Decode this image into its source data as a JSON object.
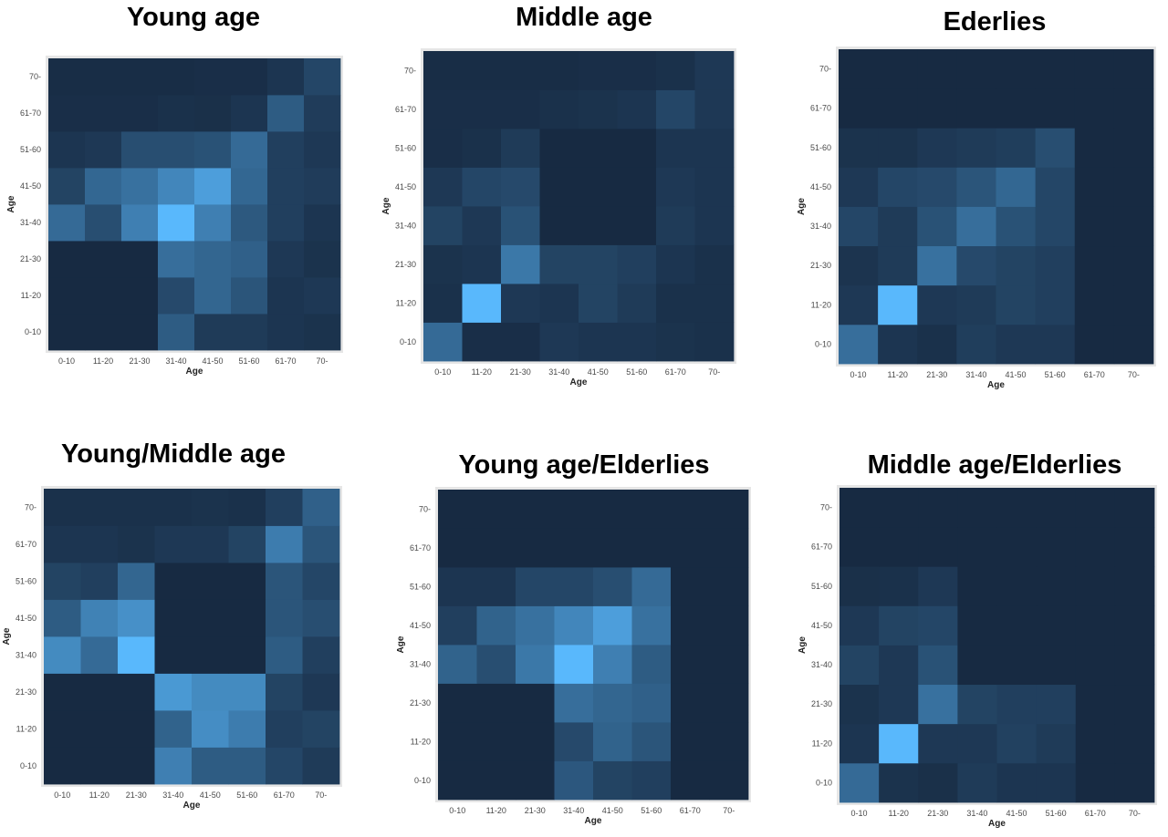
{
  "colors": {
    "low": "#172a42",
    "high": "#59b8fc",
    "frame": "#e6e6e6"
  },
  "chart_data": [
    {
      "type": "heatmap",
      "title": "Young age",
      "xlabel": "Age",
      "ylabel": "Age",
      "x": [
        "0-10",
        "11-20",
        "21-30",
        "31-40",
        "41-50",
        "51-60",
        "61-70",
        "70-"
      ],
      "y": [
        "0-10",
        "11-20",
        "21-30",
        "31-40",
        "41-50",
        "51-60",
        "61-70",
        "70-"
      ],
      "z": [
        [
          0,
          0,
          0,
          0.35,
          0.12,
          0.12,
          0.08,
          0.06
        ],
        [
          0,
          0,
          0,
          0.22,
          0.42,
          0.3,
          0.08,
          0.1
        ],
        [
          0,
          0,
          0,
          0.48,
          0.42,
          0.38,
          0.1,
          0.06
        ],
        [
          0.45,
          0.25,
          0.6,
          1.0,
          0.6,
          0.33,
          0.15,
          0.08
        ],
        [
          0.18,
          0.43,
          0.5,
          0.65,
          0.82,
          0.43,
          0.15,
          0.13
        ],
        [
          0.08,
          0.1,
          0.25,
          0.25,
          0.28,
          0.45,
          0.15,
          0.1
        ],
        [
          0.03,
          0.03,
          0.03,
          0.05,
          0.04,
          0.08,
          0.35,
          0.13
        ],
        [
          0.02,
          0.02,
          0.02,
          0.02,
          0.03,
          0.03,
          0.08,
          0.2
        ]
      ]
    },
    {
      "type": "heatmap",
      "title": "Middle age",
      "xlabel": "Age",
      "ylabel": "Age",
      "x": [
        "0-10",
        "11-20",
        "21-30",
        "31-40",
        "41-50",
        "51-60",
        "61-70",
        "70-"
      ],
      "y": [
        "0-10",
        "11-20",
        "21-30",
        "31-40",
        "41-50",
        "51-60",
        "61-70",
        "70-"
      ],
      "z": [
        [
          0.45,
          0.03,
          0.03,
          0.1,
          0.08,
          0.08,
          0.06,
          0.05
        ],
        [
          0.05,
          1.0,
          0.1,
          0.08,
          0.18,
          0.12,
          0.05,
          0.05
        ],
        [
          0.06,
          0.08,
          0.55,
          0.18,
          0.18,
          0.15,
          0.08,
          0.05
        ],
        [
          0.18,
          0.1,
          0.28,
          0,
          0,
          0,
          0.12,
          0.08
        ],
        [
          0.1,
          0.2,
          0.22,
          0,
          0,
          0,
          0.1,
          0.08
        ],
        [
          0.03,
          0.05,
          0.12,
          0,
          0,
          0,
          0.08,
          0.08
        ],
        [
          0.03,
          0.03,
          0.03,
          0.05,
          0.06,
          0.08,
          0.2,
          0.1
        ],
        [
          0.02,
          0.02,
          0.02,
          0.02,
          0.03,
          0.03,
          0.05,
          0.1
        ]
      ]
    },
    {
      "type": "heatmap",
      "title": "Ederlies",
      "xlabel": "Age",
      "ylabel": "Age",
      "x": [
        "0-10",
        "11-20",
        "21-30",
        "31-40",
        "41-50",
        "51-60",
        "61-70",
        "70-"
      ],
      "y": [
        "0-10",
        "11-20",
        "21-30",
        "31-40",
        "41-50",
        "51-60",
        "61-70",
        "70-"
      ],
      "z": [
        [
          0.48,
          0.08,
          0.05,
          0.14,
          0.1,
          0.1,
          0,
          0
        ],
        [
          0.1,
          1.0,
          0.1,
          0.12,
          0.18,
          0.15,
          0,
          0
        ],
        [
          0.07,
          0.12,
          0.5,
          0.22,
          0.18,
          0.15,
          0,
          0
        ],
        [
          0.2,
          0.12,
          0.28,
          0.48,
          0.28,
          0.2,
          0,
          0
        ],
        [
          0.1,
          0.2,
          0.22,
          0.3,
          0.43,
          0.2,
          0,
          0
        ],
        [
          0.06,
          0.06,
          0.1,
          0.12,
          0.14,
          0.25,
          0,
          0
        ],
        [
          0,
          0,
          0,
          0,
          0,
          0,
          0,
          0
        ],
        [
          0,
          0,
          0,
          0,
          0,
          0,
          0,
          0
        ]
      ]
    },
    {
      "type": "heatmap",
      "title": "Young/Middle age",
      "xlabel": "Age",
      "ylabel": "Age",
      "x": [
        "0-10",
        "11-20",
        "21-30",
        "31-40",
        "41-50",
        "51-60",
        "61-70",
        "70-"
      ],
      "y": [
        "0-10",
        "11-20",
        "21-30",
        "31-40",
        "41-50",
        "51-60",
        "61-70",
        "70-"
      ],
      "z": [
        [
          0,
          0,
          0,
          0.6,
          0.35,
          0.35,
          0.2,
          0.12
        ],
        [
          0,
          0,
          0,
          0.4,
          0.7,
          0.58,
          0.15,
          0.18
        ],
        [
          0,
          0,
          0,
          0.78,
          0.68,
          0.68,
          0.18,
          0.1
        ],
        [
          0.68,
          0.45,
          1.0,
          0,
          0,
          0,
          0.35,
          0.15
        ],
        [
          0.35,
          0.62,
          0.72,
          0,
          0,
          0,
          0.3,
          0.25
        ],
        [
          0.18,
          0.15,
          0.42,
          0,
          0,
          0,
          0.3,
          0.2
        ],
        [
          0.08,
          0.08,
          0.06,
          0.1,
          0.1,
          0.18,
          0.58,
          0.3
        ],
        [
          0.05,
          0.05,
          0.05,
          0.05,
          0.06,
          0.05,
          0.15,
          0.38
        ]
      ]
    },
    {
      "type": "heatmap",
      "title": "Young age/Elderlies",
      "xlabel": "Age",
      "ylabel": "Age",
      "x": [
        "0-10",
        "11-20",
        "21-30",
        "31-40",
        "41-50",
        "51-60",
        "61-70",
        "70-"
      ],
      "y": [
        "0-10",
        "11-20",
        "21-30",
        "31-40",
        "41-50",
        "51-60",
        "61-70",
        "70-"
      ],
      "z": [
        [
          0,
          0,
          0,
          0.32,
          0.18,
          0.15,
          0,
          0
        ],
        [
          0,
          0,
          0,
          0.22,
          0.4,
          0.3,
          0,
          0
        ],
        [
          0,
          0,
          0,
          0.48,
          0.42,
          0.38,
          0,
          0
        ],
        [
          0.4,
          0.25,
          0.55,
          1.0,
          0.6,
          0.35,
          0,
          0
        ],
        [
          0.15,
          0.4,
          0.5,
          0.65,
          0.82,
          0.5,
          0,
          0
        ],
        [
          0.08,
          0.08,
          0.2,
          0.2,
          0.25,
          0.45,
          0,
          0
        ],
        [
          0,
          0,
          0,
          0,
          0,
          0,
          0,
          0
        ],
        [
          0,
          0,
          0,
          0,
          0,
          0,
          0,
          0
        ]
      ]
    },
    {
      "type": "heatmap",
      "title": "Middle age/Elderlies",
      "xlabel": "Age",
      "ylabel": "Age",
      "x": [
        "0-10",
        "11-20",
        "21-30",
        "31-40",
        "41-50",
        "51-60",
        "61-70",
        "70-"
      ],
      "y": [
        "0-10",
        "11-20",
        "21-30",
        "31-40",
        "41-50",
        "51-60",
        "61-70",
        "70-"
      ],
      "z": [
        [
          0.45,
          0.06,
          0.04,
          0.12,
          0.08,
          0.08,
          0,
          0
        ],
        [
          0.08,
          1.0,
          0.1,
          0.1,
          0.16,
          0.12,
          0,
          0
        ],
        [
          0.06,
          0.1,
          0.5,
          0.18,
          0.15,
          0.15,
          0,
          0
        ],
        [
          0.18,
          0.1,
          0.28,
          0,
          0,
          0,
          0,
          0
        ],
        [
          0.1,
          0.18,
          0.2,
          0,
          0,
          0,
          0,
          0
        ],
        [
          0.04,
          0.05,
          0.1,
          0,
          0,
          0,
          0,
          0
        ],
        [
          0,
          0,
          0,
          0,
          0,
          0,
          0,
          0
        ],
        [
          0,
          0,
          0,
          0,
          0,
          0,
          0,
          0
        ]
      ]
    }
  ]
}
